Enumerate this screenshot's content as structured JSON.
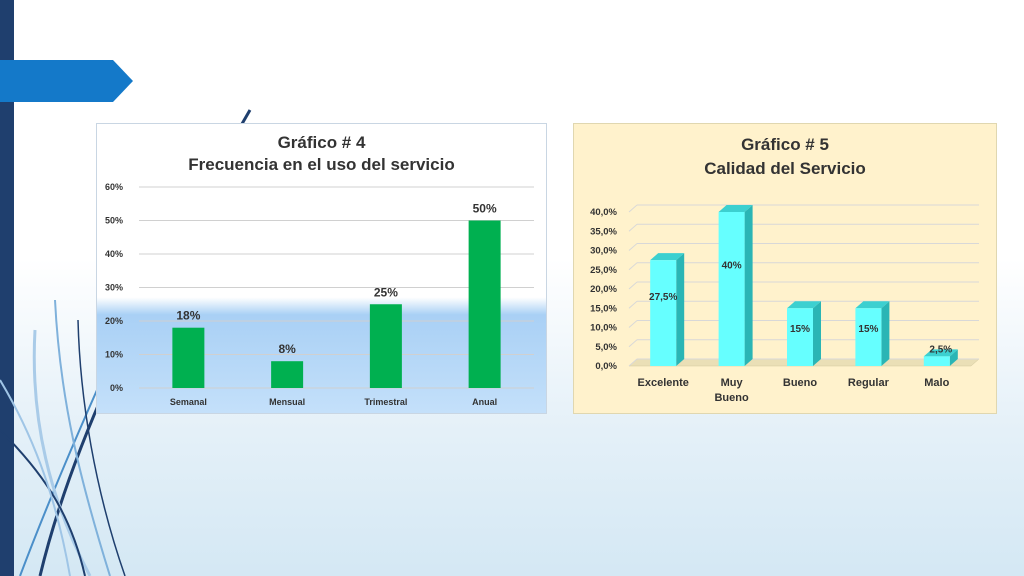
{
  "colors": {
    "accent_blue": "#1479c9",
    "dark_blue": "#1f3f6e",
    "chart1_bar": "#00b050",
    "chart2_bar": "#66ffff",
    "chart2_panel": "#fff2cc"
  },
  "chart_data": [
    {
      "type": "bar",
      "title": "Gráfico # 4",
      "subtitle": "Frecuencia en el uso del servicio",
      "categories": [
        "Semanal",
        "Mensual",
        "Trimestral",
        "Anual"
      ],
      "values": [
        18,
        8,
        25,
        50
      ],
      "data_labels": [
        "18%",
        "8%",
        "25%",
        "50%"
      ],
      "ylim": [
        0,
        60
      ],
      "yticks": [
        "0%",
        "10%",
        "20%",
        "30%",
        "40%",
        "50%",
        "60%"
      ],
      "grid": true,
      "legend": "none",
      "xlabel": "",
      "ylabel": ""
    },
    {
      "type": "bar",
      "title": "Gráfico # 5",
      "subtitle": "Calidad del Servicio",
      "categories": [
        "Excelente",
        "Muy Bueno",
        "Bueno",
        "Regular",
        "Malo"
      ],
      "category_lines": [
        [
          "Excelente"
        ],
        [
          "Muy",
          "Bueno"
        ],
        [
          "Bueno"
        ],
        [
          "Regular"
        ],
        [
          "Malo"
        ]
      ],
      "values": [
        27.5,
        40,
        15,
        15,
        2.5
      ],
      "data_labels": [
        "27,5%",
        "40%",
        "15%",
        "15%",
        "2,5%"
      ],
      "ylim": [
        0,
        40
      ],
      "yticks": [
        "0,0%",
        "5,0%",
        "10,0%",
        "15,0%",
        "20,0%",
        "25,0%",
        "30,0%",
        "35,0%",
        "40,0%"
      ],
      "grid": true,
      "legend": "none",
      "style": "3d-columns",
      "xlabel": "",
      "ylabel": ""
    }
  ]
}
